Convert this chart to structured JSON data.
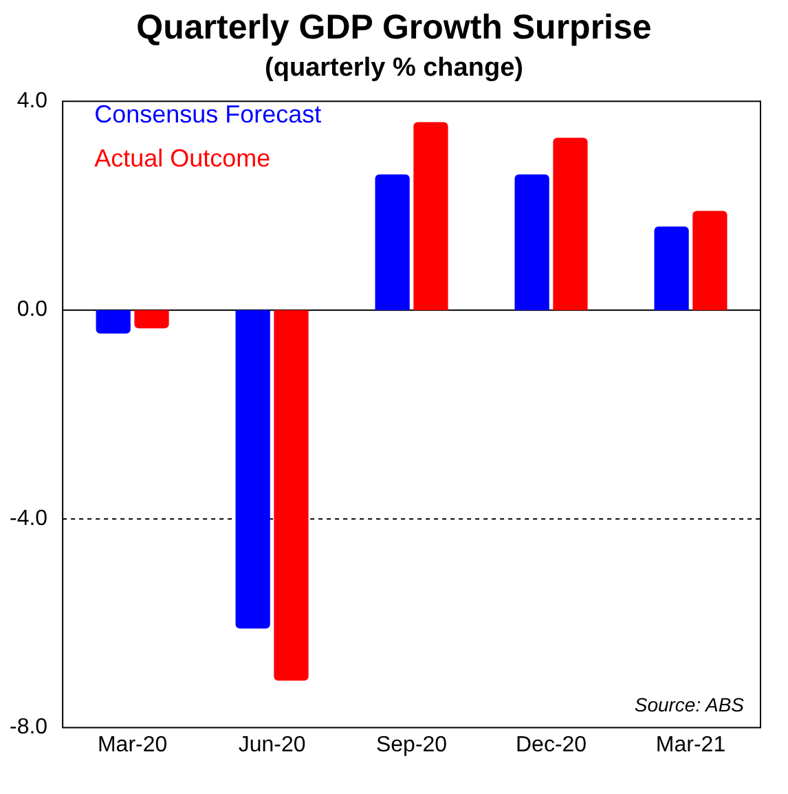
{
  "chart_data": {
    "type": "bar",
    "title": "Quarterly GDP Growth Surprise",
    "subtitle": "(quarterly %  change)",
    "categories": [
      "Mar-20",
      "Jun-20",
      "Sep-20",
      "Dec-20",
      "Mar-21"
    ],
    "series": [
      {
        "name": "Consensus Forecast",
        "color": "#0000ff",
        "values": [
          -0.45,
          -6.1,
          2.6,
          2.6,
          1.6
        ]
      },
      {
        "name": "Actual Outcome",
        "color": "#ff0000",
        "values": [
          -0.35,
          -7.1,
          3.6,
          3.3,
          1.9
        ]
      }
    ],
    "ylim": [
      -8,
      4
    ],
    "yticks": [
      {
        "value": -8,
        "label": "-8.0"
      },
      {
        "value": -4,
        "label": "-4.0"
      },
      {
        "value": 0,
        "label": "0.0"
      },
      {
        "value": 4,
        "label": "4.0"
      }
    ],
    "ref_lines": [
      {
        "axis": "y",
        "value": 0,
        "color": "#000000",
        "line_style": "solid"
      },
      {
        "axis": "y",
        "value": -4,
        "color": "#000000",
        "line_style": "dashed"
      }
    ],
    "legend": "top left",
    "grid": false,
    "annotations": [
      "Source: ABS"
    ]
  }
}
